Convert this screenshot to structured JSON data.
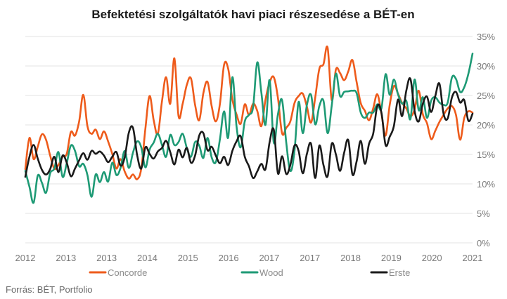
{
  "chart_data": {
    "type": "line",
    "title": "Befektetési szolgáltatók havi piaci részesedése a BÉT-en",
    "source": "Forrás: BÉT, Portfolio",
    "y_tick_labels": [
      "0%",
      "5%",
      "10%",
      "15%",
      "20%",
      "25%",
      "30%",
      "35%"
    ],
    "x_tick_labels": [
      "2012",
      "2013",
      "2013",
      "2014",
      "2015",
      "2016",
      "2017",
      "2017",
      "2018",
      "2019",
      "2020",
      "2021"
    ],
    "ylim": [
      0,
      35
    ],
    "xlim": [
      0,
      108
    ],
    "grid": true,
    "legend_position": "bottom",
    "series": [
      {
        "name": "Concorde",
        "color": "#ee5b1b",
        "values": [
          12.5,
          17.8,
          14.2,
          16.3,
          18.4,
          17.5,
          14.8,
          12.6,
          13.2,
          14.6,
          15.1,
          18.8,
          18.2,
          20.6,
          25.1,
          19.8,
          18.5,
          19.2,
          17.6,
          18.9,
          17.2,
          15.1,
          12.6,
          14.2,
          12.1,
          10.9,
          11.6,
          10.8,
          12.6,
          19.4,
          24.9,
          20.8,
          18.5,
          24.0,
          28.1,
          23.6,
          31.3,
          21.5,
          23.6,
          26.8,
          27.9,
          23.4,
          20.8,
          25.4,
          27.3,
          23.2,
          20.6,
          23.6,
          30.2,
          29.5,
          24.3,
          21.8,
          20.2,
          23.5,
          21.7,
          23.6,
          22.4,
          19.8,
          24.3,
          27.2,
          28.1,
          24.6,
          18.6,
          19.5,
          20.6,
          23.7,
          24.9,
          25.3,
          23.1,
          20.4,
          24.6,
          29.5,
          30.3,
          33.1,
          24.2,
          29.4,
          28.8,
          27.6,
          29.1,
          31.0,
          27.3,
          23.7,
          22.4,
          20.8,
          22.8,
          25.2,
          21.9,
          18.2,
          23.4,
          26.6,
          25.3,
          23.7,
          22.8,
          21.5,
          22.6,
          25.8,
          21.8,
          20.3,
          17.6,
          19.0,
          20.5,
          21.7,
          22.8,
          23.2,
          21.7,
          17.5,
          21.2,
          22.3,
          22.1
        ],
        "legend_label": "Concorde"
      },
      {
        "name": "Wood",
        "color": "#1e9a75",
        "values": [
          12.2,
          9.5,
          6.8,
          11.4,
          10.2,
          8.5,
          11.8,
          12.6,
          15.4,
          11.2,
          13.5,
          16.5,
          15.6,
          13.0,
          13.4,
          11.5,
          7.8,
          11.6,
          10.3,
          12.0,
          10.4,
          13.6,
          11.5,
          12.7,
          15.6,
          12.7,
          15.3,
          17.2,
          16.2,
          12.8,
          15.8,
          17.0,
          18.5,
          16.6,
          14.6,
          18.3,
          16.6,
          17.1,
          18.5,
          16.1,
          14.6,
          17.1,
          16.5,
          14.4,
          17.8,
          14.5,
          13.7,
          17.6,
          22.3,
          17.9,
          28.1,
          19.8,
          16.2,
          20.6,
          21.7,
          23.0,
          30.6,
          25.5,
          20.0,
          27.6,
          17.0,
          21.8,
          24.2,
          17.1,
          12.2,
          15.6,
          23.9,
          18.6,
          23.4,
          25.1,
          20.1,
          23.2,
          24.1,
          18.6,
          23.3,
          28.7,
          24.9,
          25.6,
          25.7,
          25.8,
          25.4,
          22.1,
          21.2,
          22.1,
          22.1,
          23.5,
          22.8,
          28.6,
          25.1,
          27.7,
          25.2,
          23.6,
          24.1,
          21.0,
          27.7,
          22.5,
          24.7,
          21.2,
          24.1,
          24.7,
          23.8,
          23.4,
          23.8,
          28.0,
          27.8,
          25.6,
          26.4,
          28.7,
          32.1
        ],
        "legend_label": "Wood"
      },
      {
        "name": "Erste",
        "color": "#1a1a1a",
        "values": [
          11.2,
          14.6,
          16.6,
          14.3,
          12.4,
          11.6,
          12.5,
          14.6,
          12.0,
          14.8,
          13.6,
          11.3,
          12.6,
          14.0,
          15.2,
          14.1,
          15.6,
          15.1,
          15.5,
          14.8,
          13.7,
          14.6,
          15.4,
          13.1,
          14.5,
          18.7,
          19.5,
          14.9,
          12.6,
          16.2,
          15.1,
          14.3,
          15.5,
          16.1,
          17.3,
          15.4,
          13.3,
          15.8,
          14.5,
          16.1,
          13.6,
          14.8,
          18.2,
          18.6,
          15.7,
          16.3,
          14.8,
          13.5,
          14.6,
          13.2,
          15.6,
          17.2,
          18.1,
          14.6,
          13.0,
          11.0,
          12.1,
          13.4,
          12.5,
          17.1,
          19.2,
          11.8,
          14.7,
          11.7,
          13.2,
          16.5,
          15.6,
          11.8,
          15.1,
          16.8,
          11.0,
          16.5,
          13.2,
          11.3,
          16.8,
          15.0,
          12.2,
          15.3,
          17.4,
          11.6,
          13.8,
          17.3,
          13.4,
          16.8,
          18.5,
          23.2,
          22.1,
          16.6,
          18.0,
          19.8,
          24.3,
          21.5,
          25.8,
          27.8,
          22.4,
          20.6,
          23.6,
          24.8,
          22.2,
          24.9,
          27.0,
          21.9,
          21.1,
          24.6,
          25.6,
          23.8,
          24.2,
          20.7,
          21.9
        ],
        "legend_label": "Erste"
      }
    ]
  }
}
